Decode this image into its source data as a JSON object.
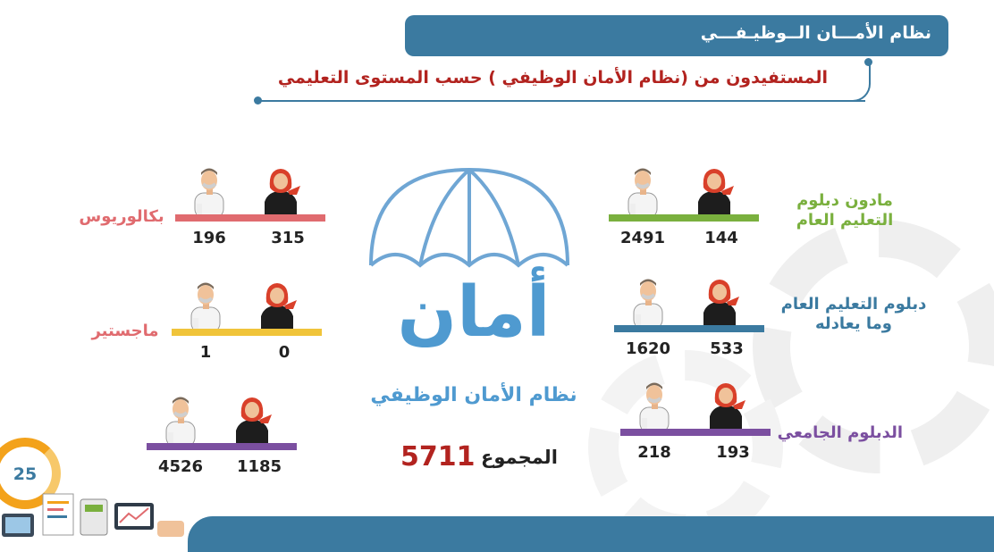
{
  "header": {
    "title": "نظام الأمـــان الــوظيـفـــي",
    "subtitle": "المستفيدون من  (نظام الأمان الوظيفي )  حسب المستوى التعليمي"
  },
  "center": {
    "logo_word": "أمان",
    "logo_sub": "نظام الأمان الوظيفي",
    "total_label": "المجموع",
    "total_value": "5711"
  },
  "page_number": "25",
  "categories": [
    {
      "label_line1": "مادون  دبلوم",
      "label_line2": "التعليم العام",
      "men": "2491",
      "women": "144",
      "color": "#7ab03e"
    },
    {
      "label_line1": "دبلوم التعليم العام",
      "label_line2": "وما يعادله",
      "men": "1620",
      "women": "533",
      "color": "#3b7aa0"
    },
    {
      "label_line1": "الدبلوم الجامعي",
      "label_line2": "",
      "men": "218",
      "women": "193",
      "color": "#7b4fa0"
    },
    {
      "label_line1": "بكالوريوس",
      "label_line2": "",
      "men": "196",
      "women": "315",
      "color": "#e06b6f"
    },
    {
      "label_line1": "ماجستير",
      "label_line2": "",
      "men": "1",
      "women": "0",
      "color": "#f0c43a"
    },
    {
      "label_line1": "",
      "label_line2": "",
      "men": "4526",
      "women": "1185",
      "color": "#7b4fa0"
    }
  ],
  "icons": {
    "man": "man-icon",
    "woman": "woman-icon",
    "umbrella": "umbrella-icon"
  }
}
